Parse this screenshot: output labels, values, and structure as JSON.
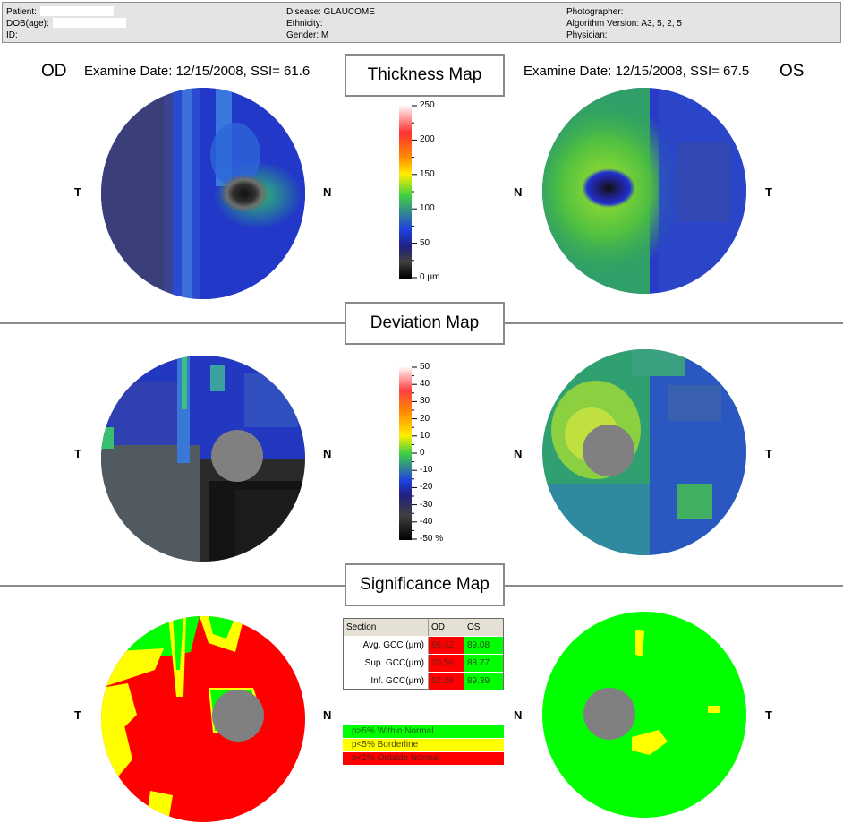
{
  "header": {
    "patient_label": "Patient:",
    "dob_label": "DOB(age):",
    "id_label": "ID:",
    "disease_label": "Disease: GLAUCOME",
    "ethnicity_label": "Ethnicity:",
    "gender_label": "Gender: M",
    "photographer_label": "Photographer:",
    "algorithm_label": "Algorithm Version: A3, 5, 2, 5",
    "physician_label": "Physician:"
  },
  "od": {
    "eye": "OD",
    "exam": "Examine Date: 12/15/2008, SSI= 61.6",
    "temporal": "T",
    "nasal": "N"
  },
  "os": {
    "eye": "OS",
    "exam": "Examine Date: 12/15/2008, SSI= 67.5",
    "temporal": "T",
    "nasal": "N"
  },
  "sections": {
    "thickness": "Thickness Map",
    "deviation": "Deviation Map",
    "significance": "Significance Map"
  },
  "thickness_scale": {
    "ticks": [
      "250",
      "200",
      "150",
      "100",
      "50",
      "0 µm"
    ]
  },
  "deviation_scale": {
    "ticks": [
      "50",
      "40",
      "30",
      "20",
      "10",
      "0",
      "-10",
      "-20",
      "-30",
      "-40",
      "-50 %"
    ]
  },
  "gcc_table": {
    "headers": {
      "section": "Section",
      "od": "OD",
      "os": "OS"
    },
    "rows": [
      {
        "section": "Avg. GCC (µm)",
        "od": "66.42",
        "os": "89.08"
      },
      {
        "section": "Sup. GCC(µm)",
        "od": "70.56",
        "os": "88.77"
      },
      {
        "section": "Inf. GCC(µm)",
        "od": "62.28",
        "os": "89.39"
      }
    ]
  },
  "legend": {
    "within": "p>5% Within Normal",
    "borderline": "p<5% Borderline",
    "outside": "p<1% Outside Normal"
  },
  "colors": {
    "within": "#00ff00",
    "borderline": "#ffff00",
    "outside": "#ff0000",
    "frame": "#8a8a8a"
  }
}
